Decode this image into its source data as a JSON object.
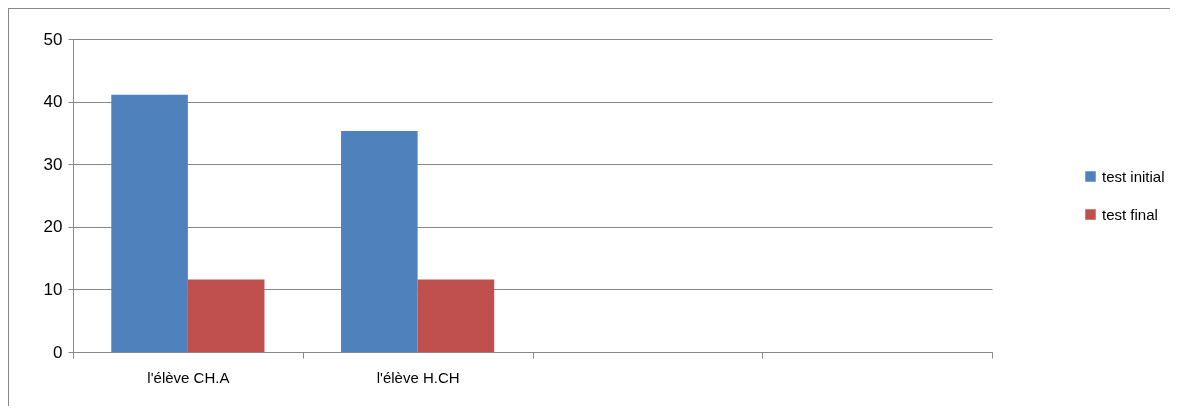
{
  "chart_data": {
    "type": "bar",
    "categories": [
      "l'élève CH.A",
      "l'élève H.CH",
      null,
      null
    ],
    "series": [
      {
        "name": "test initial",
        "color": "#4f81bd",
        "values": [
          41.1,
          35.3,
          null,
          null
        ]
      },
      {
        "name": "test final",
        "color": "#c0504d",
        "values": [
          11.6,
          11.6,
          null,
          null
        ]
      }
    ],
    "ylim": [
      0,
      50
    ],
    "yticks": [
      0,
      10,
      20,
      30,
      40,
      50
    ],
    "grid": "y",
    "legend": "right"
  }
}
